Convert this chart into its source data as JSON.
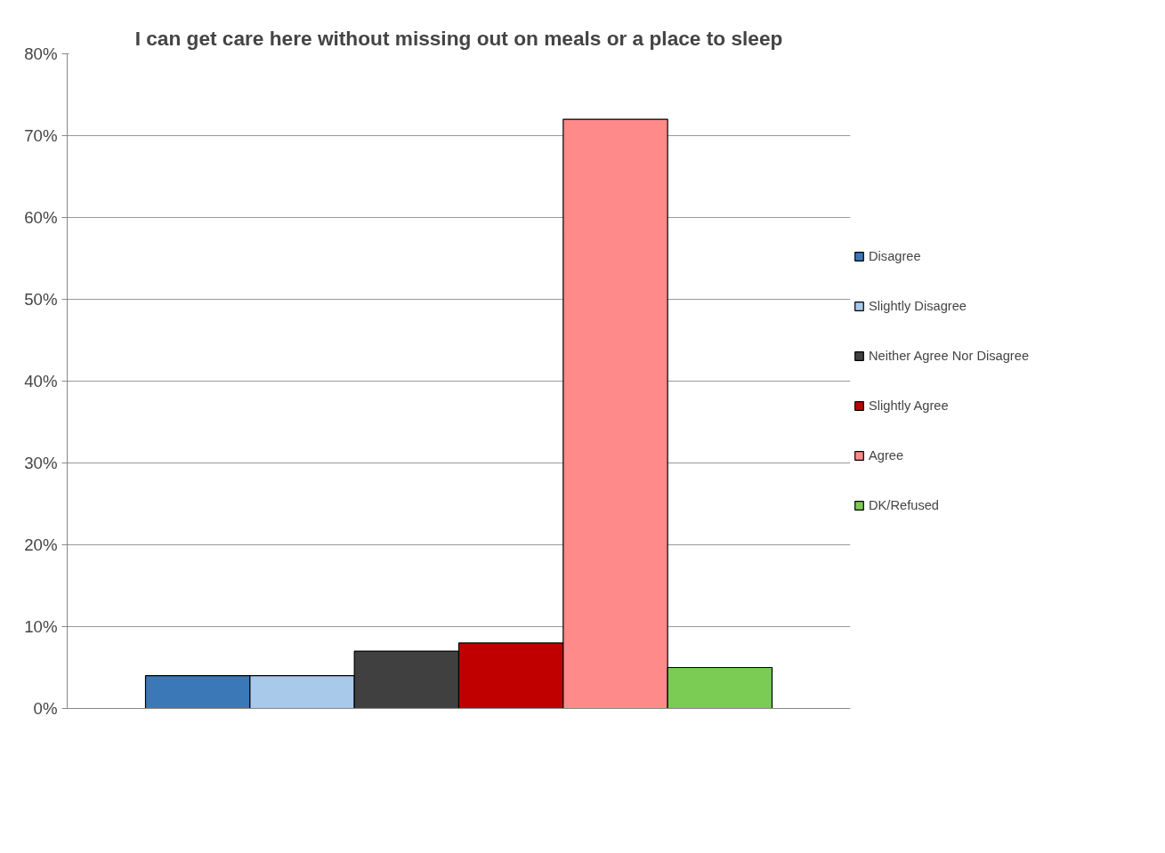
{
  "chart_data": {
    "type": "bar",
    "title": "I can get care here without missing out on meals or a place to sleep",
    "categories": [
      null
    ],
    "series": [
      {
        "name": "Disagree",
        "color": "#3a78b8",
        "values": [
          4
        ]
      },
      {
        "name": "Slightly Disagree",
        "color": "#a9c9ea",
        "values": [
          4
        ]
      },
      {
        "name": "Neither Agree Nor Disagree",
        "color": "#404040",
        "values": [
          7
        ]
      },
      {
        "name": "Slightly Agree",
        "color": "#c00000",
        "values": [
          8
        ]
      },
      {
        "name": "Agree",
        "color": "#ff8a8a",
        "values": [
          72
        ]
      },
      {
        "name": "DK/Refused",
        "color": "#7acc55",
        "values": [
          5
        ]
      }
    ],
    "ylim": [
      0,
      80
    ],
    "yticks": [
      {
        "value": 0,
        "label": "0%"
      },
      {
        "value": 10,
        "label": "10%"
      },
      {
        "value": 20,
        "label": "20%"
      },
      {
        "value": 30,
        "label": "30%"
      },
      {
        "value": 40,
        "label": "40%"
      },
      {
        "value": 50,
        "label": "50%"
      },
      {
        "value": 60,
        "label": "60%"
      },
      {
        "value": 70,
        "label": "70%"
      },
      {
        "value": 80,
        "label": "80%"
      }
    ],
    "grid": "y",
    "legend": "right"
  }
}
